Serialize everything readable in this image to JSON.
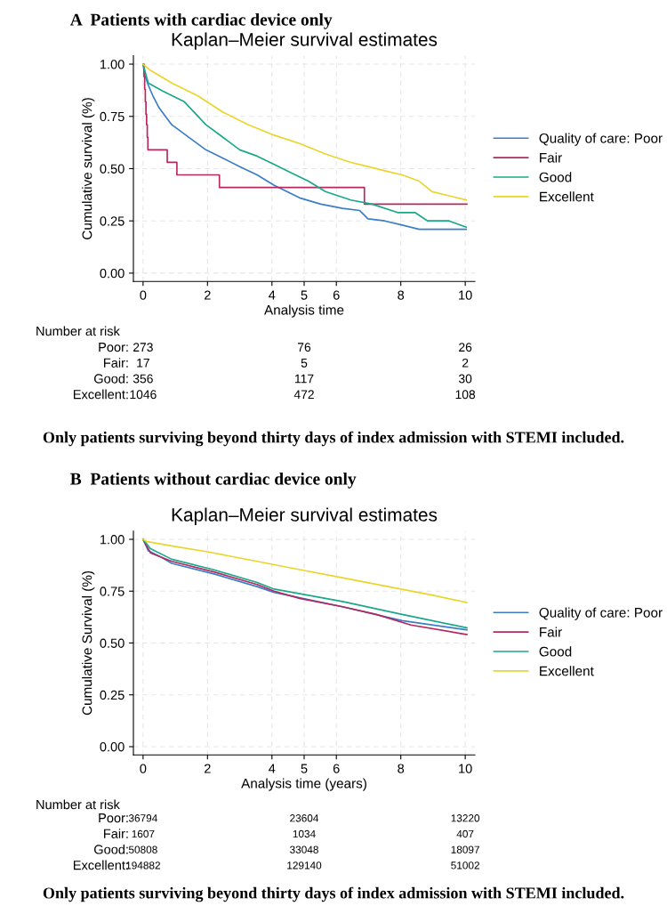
{
  "chart_data": [
    {
      "type": "line",
      "title": "A  Patients with cardiac device only",
      "subtitle": "Kaplan–Meier survival estimates",
      "xlabel": "Analysis time",
      "ylabel": "Cumulative survival (%)",
      "xlim": [
        -0.3,
        10.3
      ],
      "ylim": [
        -0.04,
        1.04
      ],
      "xticks": [
        0,
        2,
        4,
        5,
        6,
        8,
        10
      ],
      "yticks": [
        {
          "value": 0,
          "label": "0.00"
        },
        {
          "value": 0.25,
          "label": "0.25"
        },
        {
          "value": 0.5,
          "label": "0.50"
        },
        {
          "value": 0.75,
          "label": "0.75"
        },
        {
          "value": 1,
          "label": "1.00"
        }
      ],
      "grid": true,
      "legend": "right",
      "series": [
        {
          "name": "Quality of care: Poor",
          "color": "#3a7dc9",
          "x": [
            0,
            0.05,
            0.16,
            0.3,
            0.5,
            0.89,
            1.95,
            2.48,
            3.0,
            3.54,
            4.07,
            4.86,
            5.52,
            6.19,
            6.72,
            6.98,
            7.5,
            8.04,
            8.57,
            10.03
          ],
          "values": [
            1,
            0.95,
            0.9,
            0.85,
            0.79,
            0.71,
            0.59,
            0.55,
            0.51,
            0.47,
            0.42,
            0.36,
            0.33,
            0.31,
            0.3,
            0.26,
            0.25,
            0.23,
            0.21,
            0.21
          ]
        },
        {
          "name": "Fair",
          "color": "#b5285f",
          "type": "step",
          "x": [
            0,
            0.03,
            0.05,
            0.07,
            0.09,
            0.11,
            0.13,
            0.15,
            0.75,
            1.05,
            2.37,
            6.87,
            10.05
          ],
          "values": [
            1,
            0.94,
            0.88,
            0.82,
            0.76,
            0.71,
            0.65,
            0.59,
            0.53,
            0.47,
            0.41,
            0.33,
            0.33
          ]
        },
        {
          "name": "Good",
          "color": "#1aa88a",
          "x": [
            0,
            0.16,
            0.62,
            1.28,
            1.95,
            2.48,
            3.0,
            3.54,
            4.07,
            4.6,
            5.13,
            5.66,
            6.45,
            7.11,
            7.9,
            8.44,
            8.83,
            9.5,
            10.03
          ],
          "values": [
            1,
            0.91,
            0.87,
            0.82,
            0.71,
            0.65,
            0.59,
            0.56,
            0.52,
            0.48,
            0.44,
            0.39,
            0.35,
            0.33,
            0.29,
            0.29,
            0.25,
            0.25,
            0.22
          ]
        },
        {
          "name": "Excellent",
          "color": "#e8d62a",
          "x": [
            0,
            0.23,
            0.89,
            1.68,
            2.48,
            3.27,
            4.07,
            4.86,
            5.66,
            6.45,
            6.98,
            7.5,
            8.04,
            8.57,
            8.97,
            9.5,
            10.03
          ],
          "values": [
            1,
            0.97,
            0.91,
            0.85,
            0.77,
            0.71,
            0.66,
            0.62,
            0.57,
            0.53,
            0.51,
            0.49,
            0.47,
            0.44,
            0.39,
            0.37,
            0.35
          ]
        }
      ],
      "annotations": [
        "Number at risk",
        "Poor:",
        "273",
        "76",
        "26",
        "Fair:",
        "17",
        "5",
        "2",
        "Good:",
        "356",
        "117",
        "30",
        "Excellent:",
        "1046",
        "472",
        "108",
        "Only patients surviving beyond thirty days of index admission with STEMI included."
      ]
    },
    {
      "type": "line",
      "title": "B  Patients without cardiac device only",
      "subtitle": "Kaplan–Meier survival estimates",
      "xlabel": "Analysis time (years)",
      "ylabel": "Cumulative Survival (%)",
      "xlim": [
        -0.3,
        10.3
      ],
      "ylim": [
        -0.04,
        1.04
      ],
      "xticks": [
        0,
        2,
        4,
        5,
        6,
        8,
        10
      ],
      "yticks": [
        {
          "value": 0,
          "label": "0.00"
        },
        {
          "value": 0.25,
          "label": "0.25"
        },
        {
          "value": 0.5,
          "label": "0.50"
        },
        {
          "value": 0.75,
          "label": "0.75"
        },
        {
          "value": 1,
          "label": "1.00"
        }
      ],
      "grid": true,
      "legend": "right",
      "series": [
        {
          "name": "Quality of care: Poor",
          "color": "#3a7dc9",
          "x": [
            0,
            0.16,
            0.49,
            0.89,
            2.2,
            3.54,
            4.07,
            6.19,
            8.04,
            10.05
          ],
          "values": [
            1,
            0.945,
            0.92,
            0.884,
            0.833,
            0.772,
            0.744,
            0.675,
            0.608,
            0.563
          ]
        },
        {
          "name": "Fair",
          "color": "#b5285f",
          "x": [
            0,
            0.23,
            0.89,
            2.2,
            3.54,
            4.07,
            4.86,
            6.19,
            7.24,
            8.31,
            10.05
          ],
          "values": [
            1,
            0.935,
            0.894,
            0.843,
            0.782,
            0.75,
            0.715,
            0.675,
            0.638,
            0.587,
            0.541
          ]
        },
        {
          "name": "Good",
          "color": "#1aa88a",
          "x": [
            0,
            0.23,
            0.89,
            2.2,
            3.54,
            4.07,
            6.19,
            8.04,
            10.05
          ],
          "values": [
            1,
            0.955,
            0.904,
            0.853,
            0.792,
            0.76,
            0.7,
            0.638,
            0.573
          ]
        },
        {
          "name": "Excellent",
          "color": "#e8d62a",
          "x": [
            0,
            0.1,
            1,
            2,
            3,
            4,
            5,
            6,
            7,
            8,
            9,
            10.05
          ],
          "values": [
            1,
            0.99,
            0.965,
            0.94,
            0.91,
            0.88,
            0.85,
            0.82,
            0.79,
            0.76,
            0.73,
            0.695
          ]
        }
      ],
      "annotations": [
        "Number at risk",
        "Poor:",
        "36794",
        "23604",
        "13220",
        "Fair:",
        "1607",
        "1034",
        "407",
        "Good:",
        "50808",
        "33048",
        "18097",
        "Excellent:",
        "194882",
        "129140",
        "51002",
        "Only patients surviving beyond thirty days of index admission with STEMI included."
      ]
    }
  ]
}
